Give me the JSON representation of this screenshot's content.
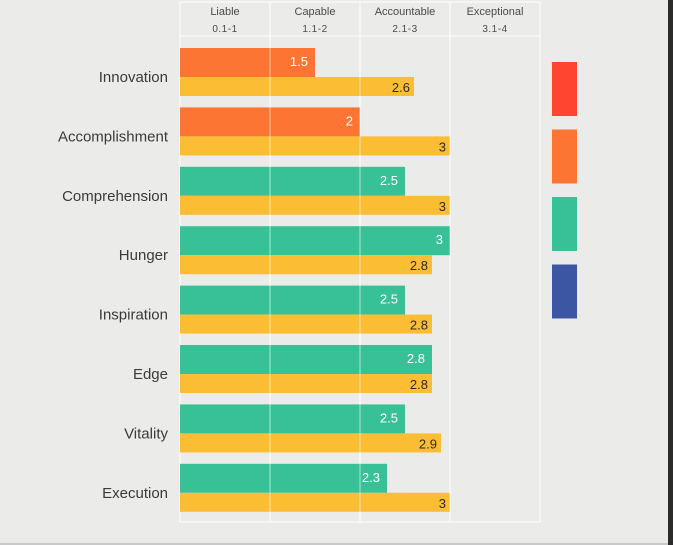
{
  "chart_data": {
    "type": "bar",
    "orientation": "horizontal",
    "categories": [
      "Innovation",
      "Accomplishment",
      "Comprehension",
      "Hunger",
      "Inspiration",
      "Edge",
      "Vitality",
      "Execution"
    ],
    "series": [
      {
        "values": [
          1.5,
          2,
          2.5,
          3,
          2.5,
          2.8,
          2.5,
          2.3
        ],
        "colors": [
          "#fd7533",
          "#fd7533",
          "#38c097",
          "#38c097",
          "#38c097",
          "#38c097",
          "#38c097",
          "#38c097"
        ]
      },
      {
        "values": [
          2.6,
          3,
          3,
          2.8,
          2.8,
          2.8,
          2.9,
          3
        ],
        "color": "#fbbd33"
      }
    ],
    "xlim": [
      0,
      4
    ],
    "bands": [
      {
        "label": "Liable",
        "range": "0.1-1",
        "from": 0,
        "to": 1
      },
      {
        "label": "Capable",
        "range": "1.1-2",
        "from": 1,
        "to": 2
      },
      {
        "label": "Accountable",
        "range": "2.1-3",
        "from": 2,
        "to": 3
      },
      {
        "label": "Exceptional",
        "range": "3.1-4",
        "from": 3,
        "to": 4
      }
    ],
    "legend": {
      "placement": "right",
      "swatches": [
        "#fe4530",
        "#fd7533",
        "#38c097",
        "#3d56a3"
      ]
    },
    "grid": true
  },
  "colors": {
    "background": "#ebebea",
    "gridline": "#ffffff"
  }
}
